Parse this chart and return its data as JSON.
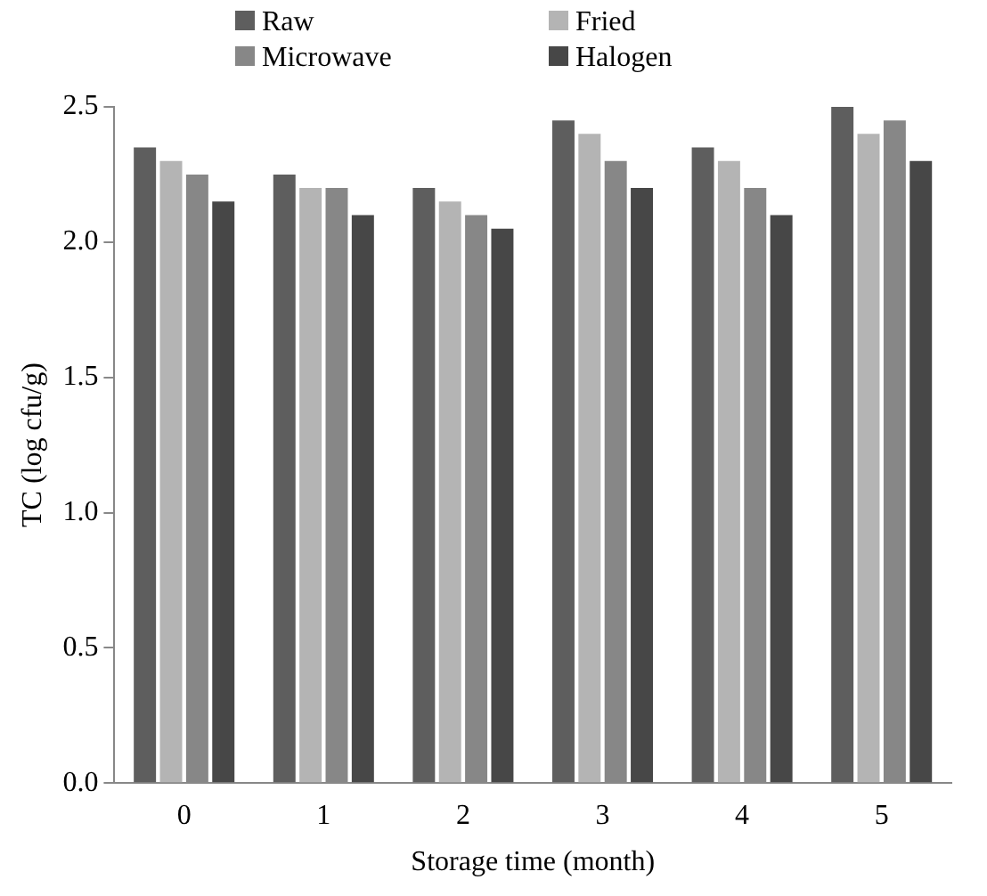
{
  "chart_data": {
    "type": "bar",
    "xlabel": "Storage time (month)",
    "ylabel": "TC (log cfu/g)",
    "categories": [
      "0",
      "1",
      "2",
      "3",
      "4",
      "5"
    ],
    "series": [
      {
        "name": "Raw",
        "color": "#5e5e5e",
        "values": [
          2.35,
          2.25,
          2.2,
          2.45,
          2.35,
          2.5
        ]
      },
      {
        "name": "Fried",
        "color": "#b4b4b4",
        "values": [
          2.3,
          2.2,
          2.15,
          2.4,
          2.3,
          2.4
        ]
      },
      {
        "name": "Microwave",
        "color": "#878787",
        "values": [
          2.25,
          2.2,
          2.1,
          2.3,
          2.2,
          2.45
        ]
      },
      {
        "name": "Halogen",
        "color": "#474747",
        "values": [
          2.15,
          2.1,
          2.05,
          2.2,
          2.1,
          2.3
        ]
      }
    ],
    "ylim": [
      0,
      2.5
    ],
    "yticks": [
      {
        "value": 0,
        "label": "0.0"
      },
      {
        "value": 0.5,
        "label": "0.5"
      },
      {
        "value": 1,
        "label": "1.0"
      },
      {
        "value": 1.5,
        "label": "1.5"
      },
      {
        "value": 2,
        "label": "2.0"
      },
      {
        "value": 2.5,
        "label": "2.5"
      }
    ],
    "grid": false,
    "legend": "top"
  }
}
